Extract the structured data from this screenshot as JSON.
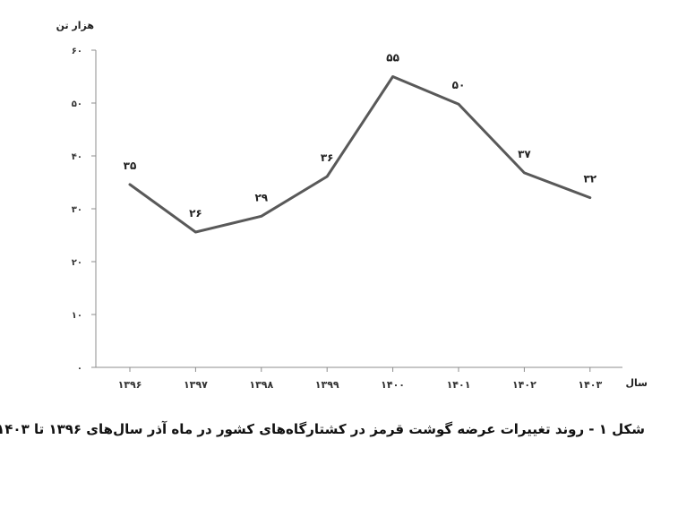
{
  "chart_data": {
    "type": "line",
    "x": [
      "۱۳۹۶",
      "۱۳۹۷",
      "۱۳۹۸",
      "۱۳۹۹",
      "۱۴۰۰",
      "۱۴۰۱",
      "۱۴۰۲",
      "۱۴۰۳"
    ],
    "values": [
      34.6,
      25.6,
      28.6,
      36.1,
      55.0,
      49.8,
      36.8,
      32.1
    ],
    "data_labels": [
      "۳۵",
      "۲۶",
      "۲۹",
      "۳۶",
      "۵۵",
      "۵۰",
      "۳۷",
      "۳۲"
    ],
    "ylim": [
      0,
      60
    ],
    "y_ticks": [
      0,
      10,
      20,
      30,
      40,
      50,
      60
    ],
    "y_tick_labels": [
      "۰",
      "۱۰",
      "۲۰",
      "۳۰",
      "۴۰",
      "۵۰",
      "۶۰"
    ],
    "ylabel": "هزار تن",
    "xlabel": "سال",
    "line_color": "#595959",
    "grid": false,
    "legend": "none"
  },
  "caption": "شکل ۱ - روند تغییرات عرضه گوشت قرمز در کشتارگاه‌های کشور در ماه آذر سال‌های ۱۳۹۶ تا ۱۴۰۳"
}
